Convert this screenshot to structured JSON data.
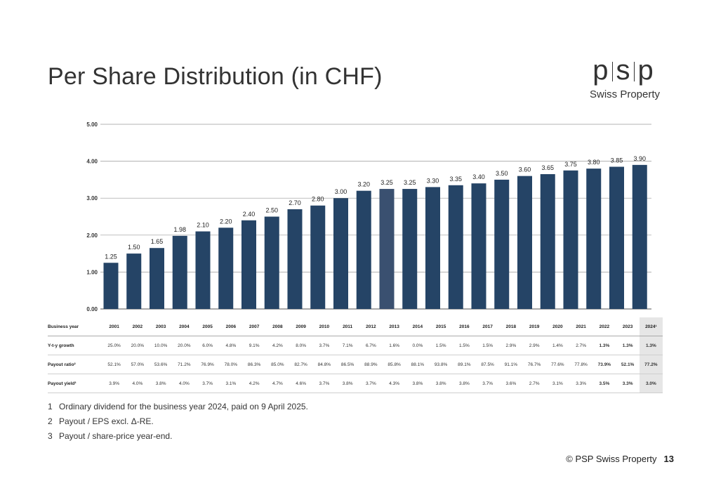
{
  "title": "Per Share Distribution (in CHF)",
  "logo": {
    "mark_letters": [
      "p",
      "s",
      "p"
    ],
    "subtitle": "Swiss Property"
  },
  "colors": {
    "bar": "#254466",
    "bar_2013": "#3a5070",
    "label_2011": "#888888"
  },
  "chart_data": {
    "type": "bar",
    "categories": [
      "2001",
      "2002",
      "2003",
      "2004",
      "2005",
      "2006",
      "2007",
      "2008",
      "2009",
      "2010",
      "2011",
      "2012",
      "2013",
      "2014",
      "2015",
      "2016",
      "2017",
      "2018",
      "2019",
      "2020",
      "2021",
      "2022",
      "2023",
      "2024"
    ],
    "values": [
      1.25,
      1.5,
      1.65,
      1.98,
      2.1,
      2.2,
      2.4,
      2.5,
      2.7,
      2.8,
      3.0,
      3.2,
      3.25,
      3.25,
      3.3,
      3.35,
      3.4,
      3.5,
      3.6,
      3.65,
      3.75,
      3.8,
      3.85,
      3.9
    ],
    "value_labels": [
      "1.25",
      "1.50",
      "1.65",
      "1.98",
      "2.10",
      "2.20",
      "2.40",
      "2.50",
      "2.70",
      "2.80",
      "3.00",
      "3.20",
      "3.25",
      "3.25",
      "3.30",
      "3.35",
      "3.40",
      "3.50",
      "3.60",
      "3.65",
      "3.75",
      "3.80",
      "3.85",
      "3.90"
    ],
    "yticks": [
      "0.00",
      "1.00",
      "2.00",
      "3.00",
      "4.00",
      "5.00"
    ],
    "ylim": [
      0,
      5
    ],
    "grid": true
  },
  "table": {
    "header_label": "Business year",
    "years": [
      "2001",
      "2002",
      "2003",
      "2004",
      "2005",
      "2006",
      "2007",
      "2008",
      "2009",
      "2010",
      "2011",
      "2012",
      "2013",
      "2014",
      "2015",
      "2016",
      "2017",
      "2018",
      "2019",
      "2020",
      "2021",
      "2022",
      "2023",
      "2024¹"
    ],
    "rows": [
      {
        "label": "Y-t-y growth",
        "values": [
          "25.0%",
          "20.0%",
          "10.0%",
          "20.0%",
          "6.0%",
          "4.8%",
          "9.1%",
          "4.2%",
          "8.0%",
          "3.7%",
          "7.1%",
          "6.7%",
          "1.6%",
          "0.0%",
          "1.5%",
          "1.5%",
          "1.5%",
          "2.9%",
          "2.9%",
          "1.4%",
          "2.7%",
          "1.3%",
          "1.3%",
          "1.3%"
        ]
      },
      {
        "label": "Payout ratio²",
        "values": [
          "52.1%",
          "57.0%",
          "53.6%",
          "71.2%",
          "76.9%",
          "78.0%",
          "86.3%",
          "85.0%",
          "82.7%",
          "84.8%",
          "86.5%",
          "88.9%",
          "85.8%",
          "88.1%",
          "93.8%",
          "89.1%",
          "87.5%",
          "91.1%",
          "76.7%",
          "77.6%",
          "77.8%",
          "73.9%",
          "52.1%",
          "77.2%"
        ]
      },
      {
        "label": "Payout yield³",
        "values": [
          "3.9%",
          "4.0%",
          "3.8%",
          "4.0%",
          "3.7%",
          "3.1%",
          "4.2%",
          "4.7%",
          "4.6%",
          "3.7%",
          "3.8%",
          "3.7%",
          "4.3%",
          "3.8%",
          "3.8%",
          "3.8%",
          "3.7%",
          "3.6%",
          "2.7%",
          "3.1%",
          "3.3%",
          "3.5%",
          "3.3%",
          "3.0%"
        ]
      }
    ]
  },
  "footnotes": [
    {
      "num": "1",
      "text": "Ordinary dividend for the business year 2024, paid on 9 April 2025."
    },
    {
      "num": "2",
      "text": "Payout  /  EPS excl. Δ-RE."
    },
    {
      "num": "3",
      "text": "Payout  /  share-price year-end."
    }
  ],
  "footer": {
    "copyright": "© PSP Swiss Property",
    "page": "13"
  }
}
